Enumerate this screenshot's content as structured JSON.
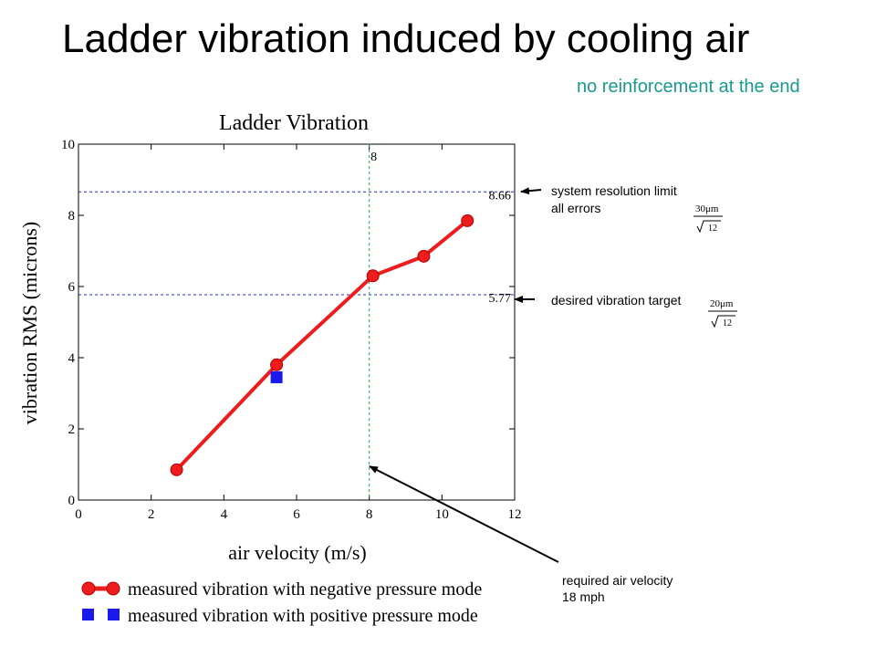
{
  "slide": {
    "title": "Ladder vibration induced by cooling air",
    "subtitle": "no reinforcement at the end"
  },
  "annotations": {
    "resolution_limit": "system resolution limit",
    "all_errors": "all errors",
    "resolution_formula": {
      "numerator": "30μm",
      "denominator": "12"
    },
    "vibration_target": "desired vibration target",
    "target_formula": {
      "numerator": "20μm",
      "denominator": "12"
    },
    "required_velocity": "required air velocity",
    "required_velocity_mph": "18 mph"
  },
  "colors": {
    "negative_series": "#ee1c1c",
    "positive_series": "#1a1aee",
    "reference_h": "#1f2fbf",
    "reference_v": "#27a84a",
    "subtitle": "#199a8e"
  },
  "chart_data": {
    "type": "scatter",
    "title": "Ladder Vibration",
    "xlabel": "air velocity (m/s)",
    "ylabel": "vibration RMS (microns)",
    "xlim": [
      0,
      12
    ],
    "ylim": [
      0,
      10
    ],
    "xticks": [
      "0",
      "2",
      "4",
      "6",
      "8",
      "10",
      "12"
    ],
    "yticks": [
      "0",
      "2",
      "4",
      "6",
      "8",
      "10"
    ],
    "grid": false,
    "legend_position": "bottom",
    "series": [
      {
        "name": "measured vibration with negative pressure mode",
        "marker": "circle",
        "line": true,
        "points": [
          [
            2.7,
            0.85
          ],
          [
            5.45,
            3.8
          ],
          [
            8.1,
            6.3
          ],
          [
            9.5,
            6.85
          ],
          [
            10.7,
            7.85
          ]
        ]
      },
      {
        "name": "measured vibration with positive pressure mode",
        "marker": "square",
        "line": false,
        "points": [
          [
            5.45,
            3.45
          ]
        ]
      }
    ],
    "reference_lines": [
      {
        "orientation": "horizontal",
        "value": 8.66,
        "label": "8.66"
      },
      {
        "orientation": "horizontal",
        "value": 5.77,
        "label": "5.77"
      },
      {
        "orientation": "vertical",
        "value": 8,
        "label": "8"
      }
    ]
  }
}
